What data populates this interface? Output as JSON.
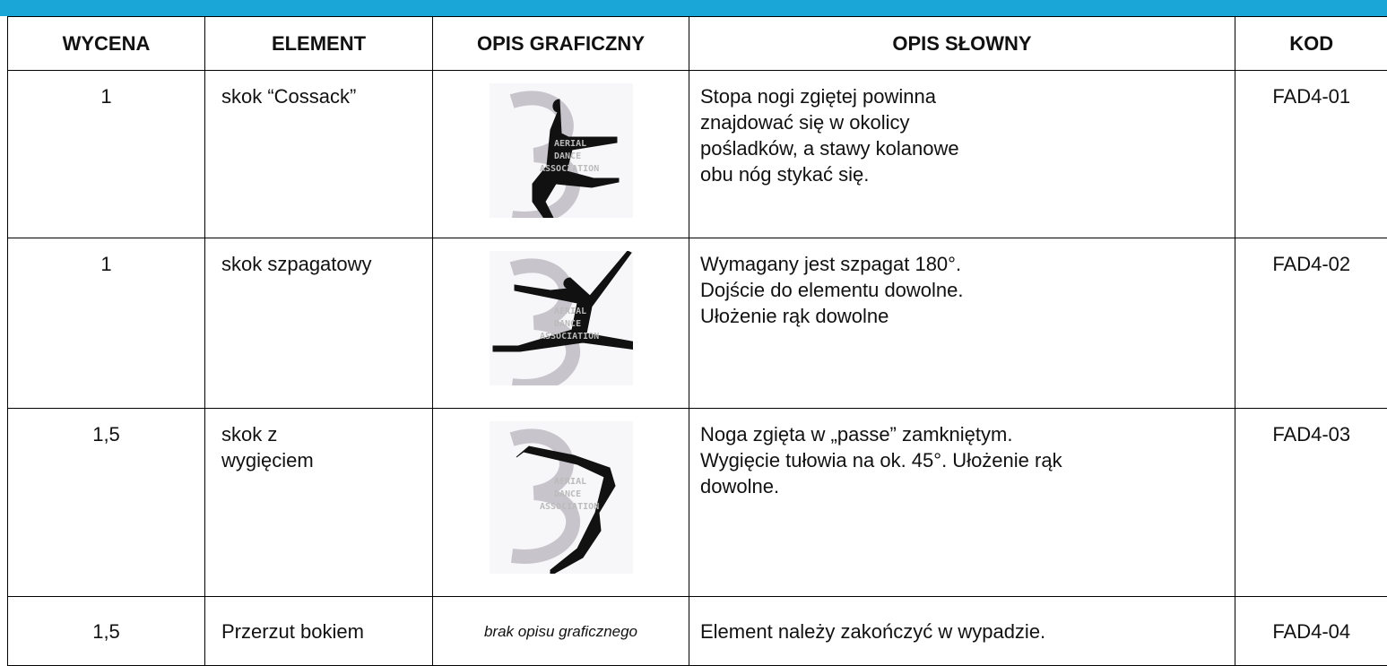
{
  "table": {
    "header": [
      "WYCENA",
      "ELEMENT",
      "OPIS GRAFICZNY",
      "OPIS SŁOWNY",
      "KOD"
    ],
    "watermark": [
      "AERIAL",
      "DANCE",
      "ASSOCIATION"
    ],
    "rows": [
      {
        "value": "1",
        "element": [
          "skok “Cossack”"
        ],
        "description": [
          "Stopa nogi zgiętej powinna",
          "znajdować się w okolicy",
          "pośladków, a stawy kolanowe",
          "obu nóg stykać się."
        ],
        "code": "FAD4-01"
      },
      {
        "value": "1",
        "element": [
          "skok szpagatowy"
        ],
        "description": [
          "Wymagany jest szpagat 180°.",
          "Dojście do elementu dowolne.",
          "Ułożenie rąk dowolne"
        ],
        "code": "FAD4-02"
      },
      {
        "value": "1,5",
        "element": [
          "skok z",
          "wygięciem"
        ],
        "description": [
          "Noga zgięta w „passe” zamkniętym.",
          "Wygięcie tułowia na ok. 45°. Ułożenie rąk",
          "dowolne."
        ],
        "code": "FAD4-03"
      },
      {
        "value": "1,5",
        "element": [
          "Przerzut bokiem"
        ],
        "graphic": "brak opisu graficznego",
        "description": [
          "Element należy zakończyć w wypadzie."
        ],
        "code": "FAD4-04"
      }
    ]
  }
}
